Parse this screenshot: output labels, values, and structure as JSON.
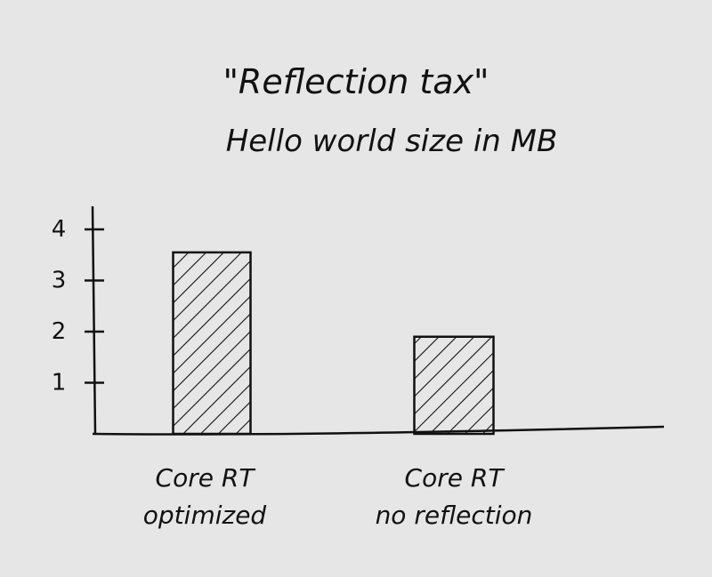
{
  "chart_data": {
    "type": "bar",
    "title": "\"Reflection tax\"",
    "subtitle": "Hello world size in MB",
    "categories": [
      "Core RT optimized",
      "Core RT no reflection"
    ],
    "category_lines": [
      [
        "Core RT",
        "optimized"
      ],
      [
        "Core RT",
        "no reflection"
      ]
    ],
    "values": [
      3.55,
      1.9
    ],
    "ylim": [
      0,
      4
    ],
    "yticks": [
      1,
      2,
      3,
      4
    ],
    "grid": false,
    "bar_fill": "hatched",
    "colors": {
      "ink": "#111111",
      "background": "#e6e6e6"
    }
  }
}
